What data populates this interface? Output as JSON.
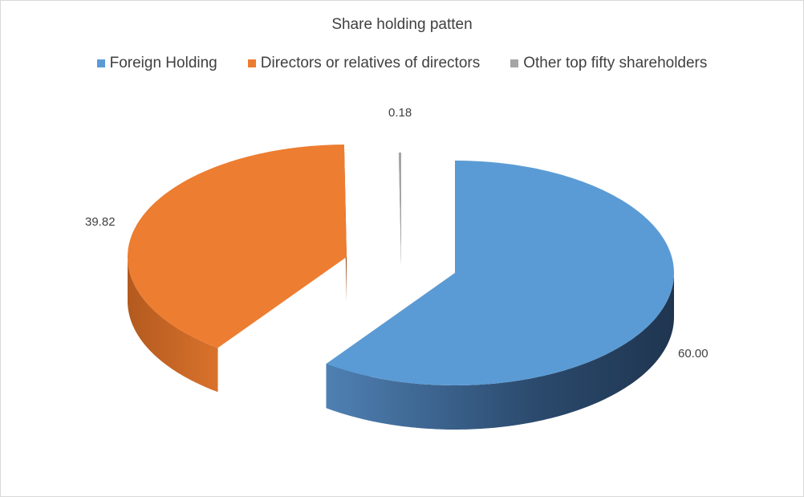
{
  "chart_data": {
    "type": "pie",
    "style": "3d-exploded",
    "title": "Share holding patten",
    "legend_position": "top",
    "categories": [
      "Foreign Holding",
      "Directors or relatives of directors",
      "Other top fifty shareholders"
    ],
    "values": [
      60.0,
      39.82,
      0.18
    ],
    "data_labels": [
      "60.00",
      "39.82",
      "0.18"
    ],
    "colors": [
      "#5b9bd5",
      "#ed7d31",
      "#a5a5a5"
    ]
  }
}
